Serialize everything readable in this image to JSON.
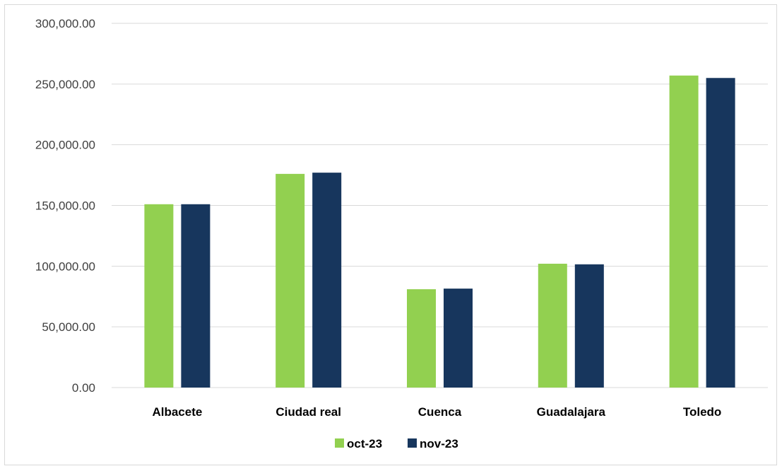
{
  "chart_data": {
    "type": "bar",
    "title": "",
    "xlabel": "",
    "ylabel": "",
    "categories": [
      "Albacete",
      "Ciudad real",
      "Cuenca",
      "Guadalajara",
      "Toledo"
    ],
    "series": [
      {
        "name": "oct-23",
        "color": "#92d050",
        "values": [
          151000,
          176000,
          81000,
          102000,
          257000
        ]
      },
      {
        "name": "nov-23",
        "color": "#17365d",
        "values": [
          151000,
          177000,
          81500,
          101500,
          255000
        ]
      }
    ],
    "ylim": [
      0,
      300000
    ],
    "yticks": [
      0,
      50000,
      100000,
      150000,
      200000,
      250000,
      300000
    ],
    "ytick_labels": [
      "0.00",
      "50,000.00",
      "100,000.00",
      "150,000.00",
      "200,000.00",
      "250,000.00",
      "300,000.00"
    ],
    "grid": true,
    "legend_position": "bottom"
  }
}
